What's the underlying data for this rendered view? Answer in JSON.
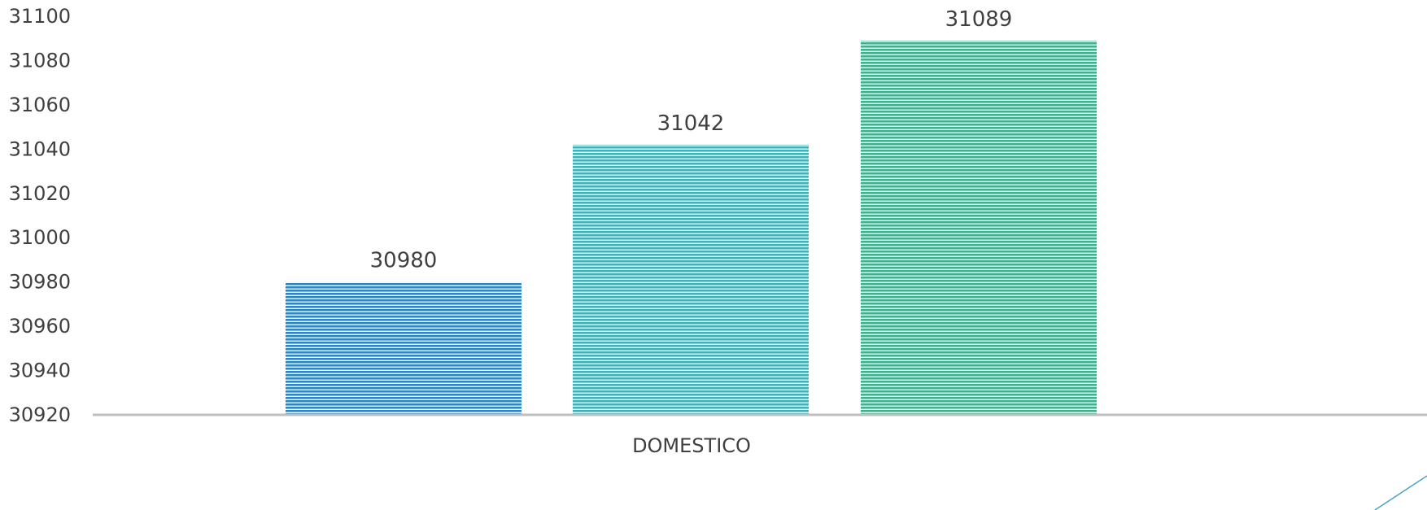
{
  "chart_data": {
    "type": "bar",
    "categories": [
      "DOMESTICO"
    ],
    "series": [
      {
        "values": [
          30980
        ],
        "color": "#2e86c1"
      },
      {
        "values": [
          31042
        ],
        "color": "#3fb2b7"
      },
      {
        "values": [
          31089
        ],
        "color": "#41b08e"
      }
    ],
    "xlabel": "",
    "ylabel": "",
    "ylim": [
      30920,
      31100
    ],
    "y_ticks": [
      "30920",
      "30940",
      "30960",
      "30980",
      "31000",
      "31020",
      "31040",
      "31060",
      "31080",
      "31100"
    ],
    "data_labels": [
      "30980",
      "31042",
      "31089"
    ],
    "grid": false,
    "legend": "none",
    "bar_pattern": "horizontal-stripes"
  },
  "colors": {
    "axis": "#bfbfbf",
    "text": "#404040",
    "corner_accent": "#4aa3c8"
  }
}
